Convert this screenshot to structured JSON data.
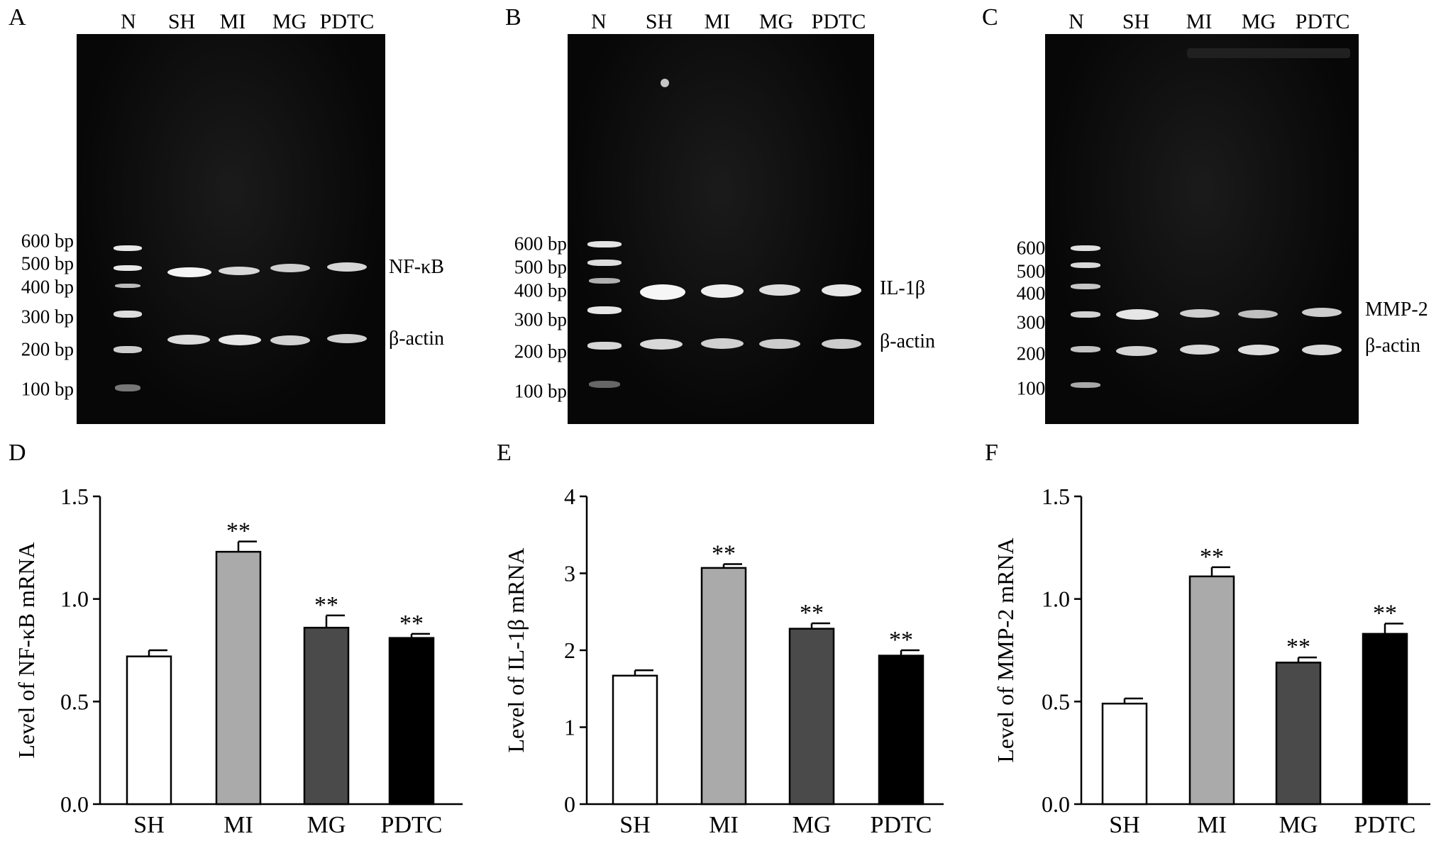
{
  "panels": {
    "A": "A",
    "B": "B",
    "C": "C",
    "D": "D",
    "E": "E",
    "F": "F"
  },
  "gels": [
    {
      "id": "A",
      "lanes": [
        "N",
        "SH",
        "MI",
        "MG",
        "PDTC"
      ],
      "bp_labels": [
        "600 bp",
        "500 bp",
        "400 bp",
        "300 bp",
        "200 bp",
        "100 bp"
      ],
      "gene_labels": [
        "NF-κB",
        "β-actin"
      ]
    },
    {
      "id": "B",
      "lanes": [
        "N",
        "SH",
        "MI",
        "MG",
        "PDTC"
      ],
      "bp_labels": [
        "600 bp",
        "500 bp",
        "400 bp",
        "300 bp",
        "200 bp",
        "100 bp"
      ],
      "gene_labels": [
        "IL-1β",
        "β-actin"
      ]
    },
    {
      "id": "C",
      "lanes": [
        "N",
        "SH",
        "MI",
        "MG",
        "PDTC"
      ],
      "bp_labels": [
        "600 bp",
        "500 bp",
        "400 bp",
        "300 bp",
        "200 bp",
        "100 bp"
      ],
      "gene_labels": [
        "MMP-2",
        "β-actin"
      ]
    }
  ],
  "chart_data": [
    {
      "type": "bar",
      "panel": "D",
      "categories": [
        "SH",
        "MI",
        "MG",
        "PDTC"
      ],
      "values": [
        0.72,
        1.23,
        0.86,
        0.81
      ],
      "errors": [
        0.03,
        0.05,
        0.06,
        0.02
      ],
      "significance": [
        "",
        "**",
        "**",
        "**"
      ],
      "colors": [
        "#ffffff",
        "#aaaaaa",
        "#4a4a4a",
        "#000000"
      ],
      "ylabel": "Level of  NF-κB mRNA",
      "ylim": [
        0,
        1.5
      ],
      "yticks": [
        0.0,
        0.5,
        1.0,
        1.5
      ],
      "ytick_labels": [
        "0.0",
        "0.5",
        "1.0",
        "1.5"
      ]
    },
    {
      "type": "bar",
      "panel": "E",
      "categories": [
        "SH",
        "MI",
        "MG",
        "PDTC"
      ],
      "values": [
        1.67,
        3.07,
        2.28,
        1.93
      ],
      "errors": [
        0.07,
        0.05,
        0.07,
        0.07
      ],
      "significance": [
        "",
        "**",
        "**",
        "**"
      ],
      "colors": [
        "#ffffff",
        "#aaaaaa",
        "#4a4a4a",
        "#000000"
      ],
      "ylabel": "Level of  IL-1β mRNA",
      "ylim": [
        0,
        4
      ],
      "yticks": [
        0,
        1,
        2,
        3,
        4
      ],
      "ytick_labels": [
        "0",
        "1",
        "2",
        "3",
        "4"
      ]
    },
    {
      "type": "bar",
      "panel": "F",
      "categories": [
        "SH",
        "MI",
        "MG",
        "PDTC"
      ],
      "values": [
        0.49,
        1.11,
        0.69,
        0.83
      ],
      "errors": [
        0.025,
        0.045,
        0.025,
        0.05
      ],
      "significance": [
        "",
        "**",
        "**",
        "**"
      ],
      "colors": [
        "#ffffff",
        "#aaaaaa",
        "#4a4a4a",
        "#000000"
      ],
      "ylabel": "Level of  MMP-2 mRNA",
      "ylim": [
        0,
        1.5
      ],
      "yticks": [
        0.0,
        0.5,
        1.0,
        1.5
      ],
      "ytick_labels": [
        "0.0",
        "0.5",
        "1.0",
        "1.5"
      ]
    }
  ]
}
